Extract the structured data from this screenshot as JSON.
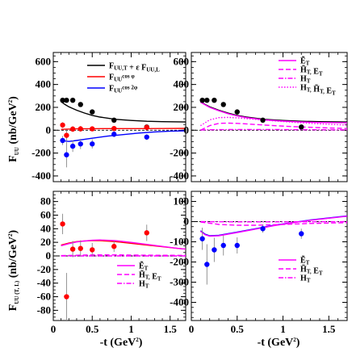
{
  "colors": {
    "black": "#000000",
    "red": "#ff0000",
    "blue": "#0000ff",
    "magenta": "#ff00ff"
  },
  "yaxis": {
    "top_label": "F_UU (nb/GeV²)",
    "bottom_label": "F_UU (T, L) (nb/GeV²)"
  },
  "xaxis": {
    "label": "-t (GeV²)",
    "ticks": [
      "0",
      "0.5",
      "1",
      "1.5"
    ]
  },
  "chart_data": [
    {
      "id": "top-left",
      "type": "line",
      "xlim": [
        0,
        1.7
      ],
      "ylim": [
        -450,
        680
      ],
      "yticks": [
        -400,
        -200,
        0,
        200,
        400,
        600
      ],
      "legend": [
        {
          "label": "F_UU,T + ε F_UU,L",
          "color": "black",
          "style": "solid"
        },
        {
          "label": "F_UU^cos φ",
          "color": "red",
          "style": "solid"
        },
        {
          "label": "F_UU^cos 2φ",
          "color": "blue",
          "style": "solid"
        }
      ],
      "series": [
        {
          "color": "black",
          "kind": "line",
          "style": "solid",
          "x": [
            0.1,
            0.15,
            0.2,
            0.3,
            0.4,
            0.5,
            0.6,
            0.8,
            1.0,
            1.2,
            1.4,
            1.6,
            1.7
          ],
          "y": [
            250,
            225,
            205,
            175,
            150,
            130,
            115,
            95,
            85,
            78,
            75,
            73,
            72
          ]
        },
        {
          "color": "red",
          "kind": "line",
          "style": "solid",
          "x": [
            0.1,
            0.3,
            0.5,
            0.8,
            1.1,
            1.4,
            1.7
          ],
          "y": [
            8,
            12,
            13,
            14,
            14,
            15,
            16
          ]
        },
        {
          "color": "blue",
          "kind": "line",
          "style": "solid",
          "x": [
            0.1,
            0.15,
            0.2,
            0.3,
            0.4,
            0.5,
            0.7,
            0.9,
            1.1,
            1.3,
            1.5,
            1.7
          ],
          "y": [
            -90,
            -95,
            -98,
            -90,
            -80,
            -70,
            -52,
            -38,
            -25,
            -15,
            -8,
            -5
          ]
        },
        {
          "color": "black",
          "kind": "points",
          "x": [
            0.12,
            0.17,
            0.25,
            0.35,
            0.5,
            0.78,
            1.2
          ],
          "y": [
            262,
            262,
            262,
            225,
            160,
            88,
            28
          ],
          "err": [
            15,
            15,
            15,
            15,
            15,
            15,
            15
          ]
        },
        {
          "color": "red",
          "kind": "points",
          "x": [
            0.12,
            0.17,
            0.25,
            0.35,
            0.5,
            0.78,
            1.2
          ],
          "y": [
            45,
            -45,
            10,
            12,
            12,
            15,
            25
          ],
          "err": [
            25,
            50,
            25,
            25,
            20,
            20,
            20
          ]
        },
        {
          "color": "blue",
          "kind": "points",
          "x": [
            0.12,
            0.17,
            0.25,
            0.35,
            0.5,
            0.78,
            1.2
          ],
          "y": [
            -90,
            -215,
            -140,
            -120,
            -120,
            -35,
            -60
          ],
          "err": [
            40,
            110,
            50,
            45,
            40,
            25,
            25
          ]
        }
      ]
    },
    {
      "id": "top-right",
      "type": "line",
      "xlim": [
        0,
        1.7
      ],
      "ylim": [
        -450,
        680
      ],
      "yticks": [
        -400,
        -200,
        0,
        200,
        400,
        600
      ],
      "legend": [
        {
          "label": "Ẽ_T",
          "color": "magenta",
          "style": "solid"
        },
        {
          "label": "H̃_T, E_T",
          "color": "magenta",
          "style": "dashed"
        },
        {
          "label": "H_T",
          "color": "magenta",
          "style": "dashdot"
        },
        {
          "label": "H_T, H̃_T, E_T",
          "color": "magenta",
          "style": "dotted"
        }
      ],
      "series": [
        {
          "color": "black",
          "kind": "line",
          "style": "solid",
          "x": [
            0.1,
            0.15,
            0.2,
            0.3,
            0.4,
            0.5,
            0.6,
            0.8,
            1.0,
            1.2,
            1.4,
            1.6,
            1.7
          ],
          "y": [
            250,
            225,
            205,
            175,
            150,
            130,
            115,
            95,
            85,
            78,
            75,
            73,
            72
          ]
        },
        {
          "color": "magenta",
          "kind": "line",
          "style": "solid",
          "x": [
            0.1,
            0.15,
            0.2,
            0.3,
            0.4,
            0.5,
            0.6,
            0.8,
            1.0,
            1.2,
            1.4,
            1.6,
            1.7
          ],
          "y": [
            245,
            222,
            200,
            170,
            145,
            125,
            110,
            90,
            80,
            72,
            68,
            66,
            65
          ]
        },
        {
          "color": "magenta",
          "kind": "line",
          "style": "dashed",
          "x": [
            0.1,
            0.2,
            0.3,
            0.4,
            0.5,
            0.7,
            0.9,
            1.1,
            1.3,
            1.5,
            1.7
          ],
          "y": [
            0,
            40,
            60,
            62,
            60,
            50,
            40,
            32,
            25,
            20,
            15
          ]
        },
        {
          "color": "magenta",
          "kind": "line",
          "style": "dashdot",
          "x": [
            0.1,
            0.2,
            0.3,
            0.5,
            0.8,
            1.1,
            1.4,
            1.7
          ],
          "y": [
            2,
            4,
            5,
            6,
            6,
            5,
            4,
            3
          ]
        },
        {
          "color": "magenta",
          "kind": "line",
          "style": "dotted",
          "x": [
            0.1,
            0.2,
            0.3,
            0.4,
            0.5,
            0.7,
            0.9,
            1.1,
            1.3,
            1.5,
            1.7
          ],
          "y": [
            40,
            90,
            110,
            112,
            108,
            95,
            82,
            70,
            60,
            52,
            45
          ]
        },
        {
          "color": "black",
          "kind": "points",
          "x": [
            0.12,
            0.17,
            0.25,
            0.35,
            0.5,
            0.78,
            1.2
          ],
          "y": [
            262,
            262,
            262,
            225,
            160,
            88,
            28
          ],
          "err": [
            15,
            15,
            15,
            15,
            15,
            15,
            15
          ]
        }
      ]
    },
    {
      "id": "bottom-left",
      "type": "line",
      "xlim": [
        0,
        1.7
      ],
      "ylim": [
        -95,
        95
      ],
      "yticks": [
        -80,
        -60,
        -40,
        -20,
        0,
        20,
        40,
        60,
        80
      ],
      "legend": [
        {
          "label": "Ẽ_T",
          "color": "magenta",
          "style": "solid"
        },
        {
          "label": "H̃_T, E_T",
          "color": "magenta",
          "style": "dashed"
        },
        {
          "label": "H_T",
          "color": "magenta",
          "style": "dashdot"
        }
      ],
      "series": [
        {
          "color": "red",
          "kind": "line",
          "style": "solid",
          "x": [
            0.1,
            0.2,
            0.3,
            0.4,
            0.5,
            0.6,
            0.8,
            1.0,
            1.2,
            1.4,
            1.6,
            1.7
          ],
          "y": [
            16,
            19,
            21,
            22,
            22.5,
            22.5,
            21,
            18.5,
            16,
            13.5,
            11,
            10
          ]
        },
        {
          "color": "magenta",
          "kind": "line",
          "style": "solid",
          "x": [
            0.1,
            0.2,
            0.3,
            0.4,
            0.5,
            0.6,
            0.8,
            1.0,
            1.2,
            1.4,
            1.6,
            1.7
          ],
          "y": [
            15,
            18,
            20.5,
            22,
            23,
            23.5,
            22.5,
            20,
            17,
            14,
            11,
            10
          ]
        },
        {
          "color": "magenta",
          "kind": "line",
          "style": "dashed",
          "x": [
            0.1,
            0.3,
            0.5,
            0.8,
            1.1,
            1.4,
            1.7
          ],
          "y": [
            0.5,
            1,
            1.5,
            1.5,
            1.2,
            1,
            0.8
          ]
        },
        {
          "color": "magenta",
          "kind": "line",
          "style": "dashdot",
          "x": [
            0.1,
            0.5,
            1.0,
            1.7
          ],
          "y": [
            0,
            0,
            0,
            0
          ]
        },
        {
          "color": "red",
          "kind": "points",
          "x": [
            0.12,
            0.17,
            0.25,
            0.35,
            0.5,
            0.78,
            1.2
          ],
          "y": [
            47,
            -60,
            10,
            11,
            9,
            14,
            34
          ],
          "err": [
            15,
            35,
            12,
            12,
            10,
            8,
            12
          ]
        }
      ]
    },
    {
      "id": "bottom-right",
      "type": "line",
      "xlim": [
        0,
        1.7
      ],
      "ylim": [
        -490,
        150
      ],
      "yticks": [
        -400,
        -300,
        -200,
        -100,
        0,
        100
      ],
      "legend": [
        {
          "label": "Ẽ_T",
          "color": "magenta",
          "style": "solid"
        },
        {
          "label": "H̃_T, E_T",
          "color": "magenta",
          "style": "dashed"
        },
        {
          "label": "H_T",
          "color": "magenta",
          "style": "dashdot"
        }
      ],
      "series": [
        {
          "color": "blue",
          "kind": "line",
          "style": "solid",
          "x": [
            0.1,
            0.15,
            0.2,
            0.3,
            0.4,
            0.5,
            0.7,
            0.9,
            1.1,
            1.3,
            1.5,
            1.7
          ],
          "y": [
            -45,
            -62,
            -70,
            -68,
            -60,
            -52,
            -35,
            -18,
            -5,
            8,
            18,
            28
          ]
        },
        {
          "color": "magenta",
          "kind": "line",
          "style": "solid",
          "x": [
            0.1,
            0.15,
            0.2,
            0.3,
            0.4,
            0.5,
            0.7,
            0.9,
            1.1,
            1.3,
            1.5,
            1.7
          ],
          "y": [
            -48,
            -65,
            -72,
            -70,
            -62,
            -54,
            -37,
            -20,
            -6,
            7,
            17,
            27
          ]
        },
        {
          "color": "magenta",
          "kind": "line",
          "style": "dashed",
          "x": [
            0.1,
            0.2,
            0.3,
            0.5,
            0.7,
            1.0,
            1.3,
            1.7
          ],
          "y": [
            -2,
            -8,
            -14,
            -18,
            -18,
            -14,
            -9,
            -5
          ]
        },
        {
          "color": "magenta",
          "kind": "line",
          "style": "dashdot",
          "x": [
            0.1,
            0.5,
            1.0,
            1.7
          ],
          "y": [
            0,
            -1,
            -1,
            0
          ]
        },
        {
          "color": "blue",
          "kind": "points",
          "x": [
            0.12,
            0.17,
            0.25,
            0.35,
            0.5,
            0.78,
            1.2
          ],
          "y": [
            -85,
            -212,
            -140,
            -118,
            -118,
            -35,
            -60
          ],
          "err": [
            55,
            100,
            60,
            50,
            40,
            20,
            25
          ]
        }
      ]
    }
  ]
}
